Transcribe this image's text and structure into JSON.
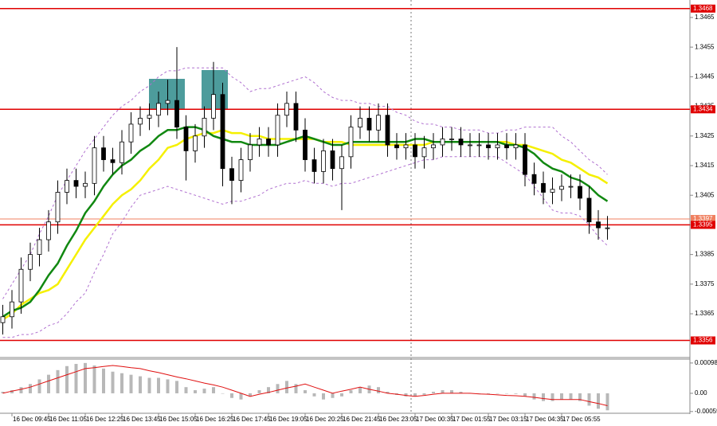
{
  "chart_data": [
    {
      "type": "candlestick",
      "categories": [
        null,
        "16 Dec 09:45",
        null,
        null,
        null,
        "16 Dec 11:05",
        null,
        null,
        null,
        "16 Dec 12:25",
        null,
        null,
        null,
        "16 Dec 13:45",
        null,
        null,
        null,
        "16 Dec 15:05",
        null,
        null,
        null,
        "16 Dec 16:25",
        null,
        null,
        null,
        "16 Dec 17:45",
        null,
        null,
        null,
        "16 Dec 19:05",
        null,
        null,
        null,
        "16 Dec 20:25",
        null,
        null,
        null,
        "16 Dec 21:45",
        null,
        null,
        null,
        "16 Dec 23:05",
        null,
        null,
        null,
        "17 Dec 00:35",
        null,
        null,
        null,
        "17 Dec 01:55",
        null,
        null,
        null,
        "17 Dec 03:15",
        null,
        null,
        null,
        "17 Dec 04:35",
        null,
        null,
        null,
        "17 Dec 05:55",
        null,
        null,
        null,
        null,
        null
      ],
      "open": [
        1.3362,
        1.3364,
        1.3369,
        1.338,
        1.3385,
        1.339,
        1.3396,
        1.3406,
        1.341,
        1.3408,
        1.3409,
        1.3421,
        1.3417,
        1.3416,
        1.3423,
        1.3429,
        1.3431,
        1.3432,
        1.3436,
        1.3437,
        1.3428,
        1.342,
        1.3425,
        1.3431,
        1.3439,
        1.3414,
        1.341,
        1.3417,
        1.3422,
        1.3424,
        1.3422,
        1.3432,
        1.3436,
        1.3427,
        1.3417,
        1.3413,
        1.342,
        1.3414,
        1.3418,
        1.3428,
        1.3431,
        1.3427,
        1.3432,
        1.3422,
        1.3421,
        1.3422,
        1.3418,
        1.3421,
        1.3422,
        1.3424,
        1.3424,
        1.3422,
        1.3422,
        1.3422,
        1.3421,
        1.3422,
        1.3421,
        1.3422,
        1.3412,
        1.3409,
        1.3406,
        1.3407,
        1.3408,
        1.3408,
        1.3404,
        1.3396,
        1.3394
      ],
      "high": [
        1.3368,
        1.3373,
        1.3384,
        1.3389,
        1.3394,
        1.34,
        1.341,
        1.3414,
        1.3414,
        1.3413,
        1.3425,
        1.3425,
        1.3421,
        1.3427,
        1.3433,
        1.3435,
        1.3436,
        1.344,
        1.3444,
        1.3455,
        1.3432,
        1.3429,
        1.3435,
        1.345,
        1.3443,
        1.3418,
        1.3421,
        1.3426,
        1.3428,
        1.3428,
        1.3436,
        1.344,
        1.344,
        1.3431,
        1.3421,
        1.3424,
        1.3424,
        1.3422,
        1.3432,
        1.3435,
        1.3435,
        1.3436,
        1.3436,
        1.3426,
        1.3426,
        1.3426,
        1.3425,
        1.3426,
        1.3428,
        1.3428,
        1.3428,
        1.3426,
        1.3426,
        1.3426,
        1.3426,
        1.3426,
        1.3426,
        1.3426,
        1.3416,
        1.3413,
        1.3411,
        1.3412,
        1.3412,
        1.3412,
        1.3408,
        1.34,
        1.3398
      ],
      "low": [
        1.3358,
        1.336,
        1.3365,
        1.3376,
        1.3381,
        1.3386,
        1.3392,
        1.3402,
        1.3404,
        1.3404,
        1.3405,
        1.3413,
        1.3412,
        1.3412,
        1.3419,
        1.3425,
        1.3427,
        1.3428,
        1.3432,
        1.3424,
        1.341,
        1.3416,
        1.3421,
        1.3427,
        1.3408,
        1.3402,
        1.3406,
        1.3413,
        1.3418,
        1.3418,
        1.3418,
        1.3428,
        1.3423,
        1.3413,
        1.3409,
        1.3409,
        1.341,
        1.34,
        1.3414,
        1.3424,
        1.3423,
        1.3423,
        1.3418,
        1.3417,
        1.3417,
        1.3414,
        1.3414,
        1.3417,
        1.3418,
        1.342,
        1.3418,
        1.3418,
        1.3418,
        1.3417,
        1.3417,
        1.3417,
        1.3417,
        1.3408,
        1.3405,
        1.3402,
        1.3402,
        1.3403,
        1.3404,
        1.34,
        1.3392,
        1.339,
        1.339
      ],
      "close": [
        1.3364,
        1.3369,
        1.338,
        1.3385,
        1.339,
        1.3396,
        1.3406,
        1.341,
        1.3408,
        1.3409,
        1.3421,
        1.3417,
        1.3416,
        1.3423,
        1.3429,
        1.3431,
        1.3432,
        1.3436,
        1.3437,
        1.3428,
        1.342,
        1.3425,
        1.3431,
        1.3439,
        1.3414,
        1.341,
        1.3417,
        1.3422,
        1.3424,
        1.3422,
        1.3432,
        1.3436,
        1.3427,
        1.3417,
        1.3413,
        1.342,
        1.3414,
        1.3418,
        1.3428,
        1.3431,
        1.3427,
        1.3432,
        1.3422,
        1.3421,
        1.3422,
        1.3418,
        1.3421,
        1.3422,
        1.3424,
        1.3424,
        1.3422,
        1.3422,
        1.3422,
        1.3421,
        1.3422,
        1.3421,
        1.3422,
        1.3412,
        1.3409,
        1.3406,
        1.3407,
        1.3408,
        1.3408,
        1.3404,
        1.3396,
        1.3394,
        1.3394
      ],
      "candle_color": "#000000",
      "series": [
        {
          "color": "#b070d0",
          "dashed": true,
          "values": [
            1.337,
            1.3375,
            1.338,
            1.3385,
            1.3392,
            1.3398,
            1.3405,
            1.341,
            1.3415,
            1.342,
            1.3424,
            1.3428,
            1.3432,
            1.3435,
            1.3437,
            1.344,
            1.3442,
            1.3445,
            1.3447,
            1.3447,
            1.3448,
            1.3448,
            1.3448,
            1.3448,
            1.3448,
            1.3445,
            1.3443,
            1.344,
            1.3441,
            1.3441,
            1.3442,
            1.3443,
            1.3444,
            1.3445,
            1.3443,
            1.344,
            1.3438,
            1.3437,
            1.3437,
            1.3436,
            1.3436,
            1.3435,
            1.3435,
            1.3433,
            1.3432,
            1.343,
            1.3429,
            1.3429,
            1.3428,
            1.3428,
            1.3427,
            1.3427,
            1.3427,
            1.3426,
            1.3426,
            1.3427,
            1.3427,
            1.3428,
            1.3428,
            1.3428,
            1.3428,
            1.3425,
            1.3423,
            1.342,
            1.3417,
            1.3415,
            1.3412
          ]
        },
        {
          "color": "#b070d0",
          "dashed": true,
          "values": [
            1.3357,
            1.3357,
            1.3358,
            1.3358,
            1.3359,
            1.3361,
            1.3362,
            1.3365,
            1.3369,
            1.3372,
            1.3379,
            1.3385,
            1.3392,
            1.3396,
            1.3401,
            1.3405,
            1.3406,
            1.3407,
            1.3408,
            1.3407,
            1.3406,
            1.3405,
            1.3404,
            1.3403,
            1.3402,
            1.3403,
            1.3403,
            1.3404,
            1.3405,
            1.3407,
            1.3408,
            1.3409,
            1.3409,
            1.341,
            1.3409,
            1.3409,
            1.3408,
            1.3409,
            1.3409,
            1.341,
            1.3411,
            1.3412,
            1.3413,
            1.3414,
            1.3415,
            1.3416,
            1.3417,
            1.3417,
            1.3418,
            1.3418,
            1.3418,
            1.3418,
            1.3418,
            1.3418,
            1.3418,
            1.3416,
            1.3414,
            1.3412,
            1.3408,
            1.3404,
            1.34,
            1.3399,
            1.3399,
            1.3398,
            1.3395,
            1.3391,
            1.3388
          ]
        },
        {
          "color": "#f5f000",
          "dashed": false,
          "values": [
            1.3363,
            1.3365,
            1.3368,
            1.337,
            1.3372,
            1.3373,
            1.3375,
            1.338,
            1.3385,
            1.339,
            1.3394,
            1.3398,
            1.3402,
            1.3405,
            1.3407,
            1.341,
            1.3414,
            1.3417,
            1.3421,
            1.3422,
            1.3424,
            1.3425,
            1.3426,
            1.3426,
            1.3427,
            1.3426,
            1.3426,
            1.3425,
            1.3425,
            1.3424,
            1.3424,
            1.3424,
            1.3424,
            1.3424,
            1.3424,
            1.3423,
            1.3423,
            1.3423,
            1.3422,
            1.3422,
            1.3422,
            1.3422,
            1.3422,
            1.3422,
            1.3422,
            1.3422,
            1.3422,
            1.3423,
            1.3423,
            1.3423,
            1.3423,
            1.3423,
            1.3423,
            1.3423,
            1.3423,
            1.3423,
            1.3422,
            1.3422,
            1.3421,
            1.342,
            1.3419,
            1.3417,
            1.3416,
            1.3414,
            1.3412,
            1.3411,
            1.3409
          ]
        },
        {
          "color": "#118811",
          "dashed": false,
          "values": [
            1.3364,
            1.3366,
            1.3367,
            1.3369,
            1.3373,
            1.3378,
            1.3382,
            1.3388,
            1.3393,
            1.3399,
            1.3403,
            1.3408,
            1.3412,
            1.3415,
            1.3417,
            1.342,
            1.3422,
            1.3425,
            1.3427,
            1.3427,
            1.3428,
            1.3428,
            1.3427,
            1.3425,
            1.3424,
            1.3423,
            1.3423,
            1.3422,
            1.3422,
            1.3422,
            1.3422,
            1.3423,
            1.3424,
            1.3425,
            1.3424,
            1.3423,
            1.3422,
            1.3422,
            1.3423,
            1.3423,
            1.3423,
            1.3423,
            1.3423,
            1.3423,
            1.3423,
            1.3424,
            1.3424,
            1.3423,
            1.3423,
            1.3423,
            1.3423,
            1.3423,
            1.3423,
            1.3423,
            1.3423,
            1.3422,
            1.3422,
            1.3421,
            1.3419,
            1.3416,
            1.3414,
            1.3413,
            1.3411,
            1.341,
            1.3408,
            1.3405,
            1.3403
          ]
        }
      ],
      "levels": [
        1.3468,
        1.3434,
        1.3397,
        1.3395,
        1.3356
      ],
      "level_colors": [
        "#e00000",
        "#e00000",
        "#f08060",
        "#e00000",
        "#e00000"
      ],
      "ylim": [
        1.33505,
        1.34709
      ],
      "yticks": [
        1.3465,
        1.3455,
        1.3445,
        1.3435,
        1.3425,
        1.3415,
        1.3405,
        1.3395,
        1.3385,
        1.3375,
        1.3365
      ]
    },
    {
      "type": "macd",
      "color": "#b8b8b8",
      "values": [
        5e-05,
        0.0001,
        0.0002,
        0.0003,
        0.00045,
        0.0006,
        0.00075,
        0.00088,
        0.00095,
        0.00098,
        0.0009,
        0.0008,
        0.0007,
        0.00065,
        0.0006,
        0.00055,
        0.0005,
        0.0005,
        0.00045,
        0.0004,
        0.0002,
        0.0001,
        0.00015,
        0.0002,
        0.0,
        -0.00015,
        -0.0002,
        -0.0001,
        0.0001,
        0.0002,
        0.0003,
        0.0004,
        0.0003,
        0.0001,
        -0.0001,
        -0.0002,
        -0.00015,
        -0.0001,
        0.0001,
        0.0002,
        0.00025,
        0.0002,
        5e-05,
        -5e-05,
        -0.0001,
        -0.0001,
        -5e-05,
        5e-05,
        0.0001,
        0.0001,
        5e-05,
        0.0,
        0.0,
        -2e-05,
        0.0,
        0.0,
        -2e-05,
        -0.0001,
        -0.0002,
        -0.00025,
        -0.00025,
        -0.0002,
        -0.0002,
        -0.00025,
        -0.0004,
        -0.0005,
        -0.00055
      ],
      "series": [
        {
          "color": "#e01010",
          "values": [
            0,
            7e-05,
            0.00013,
            0.0002,
            0.0003,
            0.0004,
            0.0005,
            0.0006,
            0.0007,
            0.0008,
            0.00083,
            0.00087,
            0.0009,
            0.00087,
            0.00083,
            0.0008,
            0.00073,
            0.00067,
            0.0006,
            0.00053,
            0.00047,
            0.0004,
            0.00033,
            0.00027,
            0.0002,
            0.0001,
            0,
            -0.0001,
            -3e-05,
            3e-05,
            0.0001,
            0.00017,
            0.00023,
            0.0003,
            0.0002,
            0.0001,
            0,
            7e-05,
            0.00013,
            0.0002,
            0.00013,
            7e-05,
            0,
            -3e-05,
            -7e-05,
            -0.0001,
            -7e-05,
            -3e-05,
            0,
            0,
            0,
            0,
            -2e-05,
            -3e-05,
            -5e-05,
            -7e-05,
            -8e-05,
            -0.0001,
            -0.00013,
            -0.00017,
            -0.0002,
            -0.0002,
            -0.0002,
            -0.0002,
            -0.00027,
            -0.00033,
            -0.0004
          ]
        }
      ],
      "ylim": [
        -0.00062,
        0.00108
      ],
      "yticks": [
        0.00098,
        {
          "value": 0,
          "label": "0.00"
        },
        -0.00059
      ]
    }
  ]
}
